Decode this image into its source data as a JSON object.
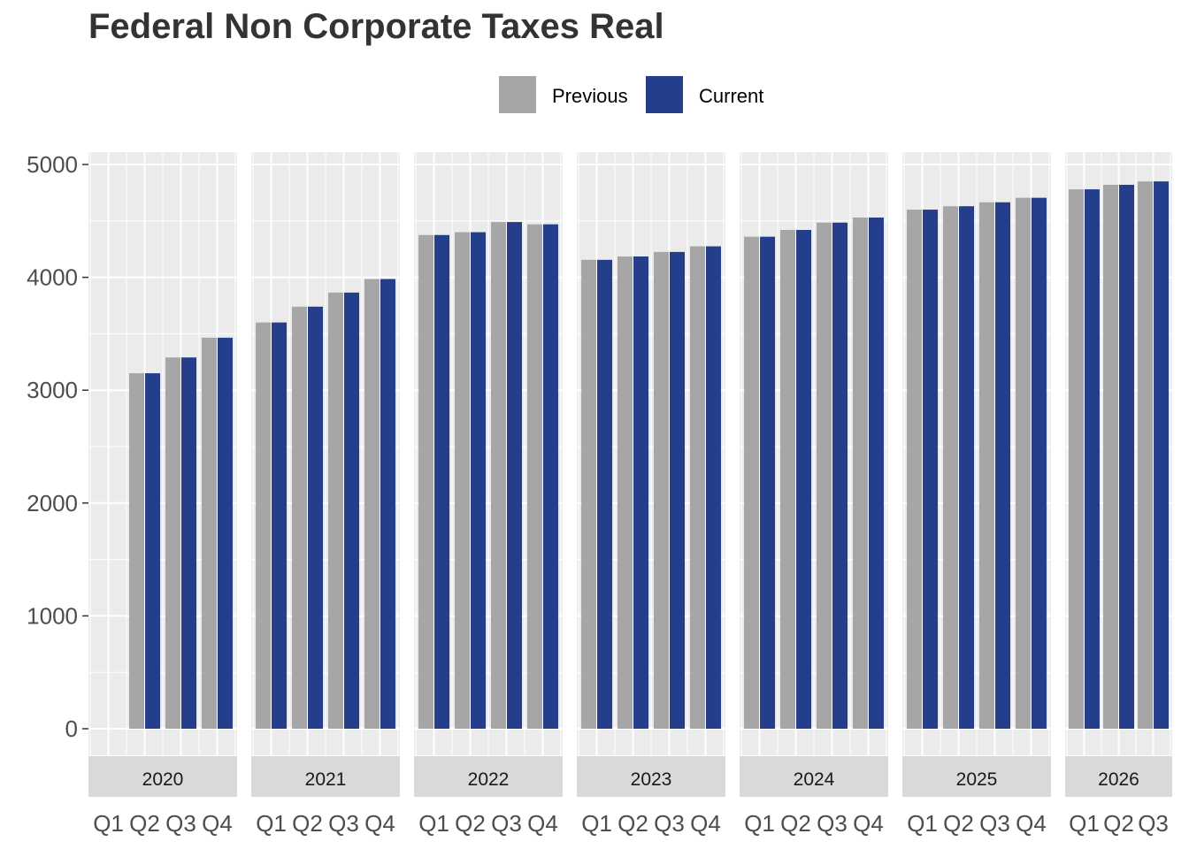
{
  "chart_data": {
    "type": "bar",
    "title": "Federal Non Corporate Taxes Real",
    "xlabel": "",
    "ylabel": "",
    "ylim": [
      -230,
      5100
    ],
    "yticks": [
      0,
      1000,
      2000,
      3000,
      4000,
      5000
    ],
    "grid": true,
    "legend_position": "top",
    "colors": {
      "Previous": "#a6a6a6",
      "Current": "#253e8c",
      "panel_bg": "#ebebeb",
      "strip_bg": "#d9d9d9"
    },
    "quarter_slots": [
      "Q1",
      "Q2",
      "Q3",
      "Q4"
    ],
    "series": [
      {
        "name": "Previous",
        "color": "#a6a6a6"
      },
      {
        "name": "Current",
        "color": "#253e8c"
      }
    ],
    "panels": [
      {
        "year": "2020",
        "quarters": [
          "Q1",
          "Q2",
          "Q3",
          "Q4"
        ],
        "previous": [
          null,
          3150,
          3290,
          3465
        ],
        "current": [
          null,
          3150,
          3290,
          3465
        ]
      },
      {
        "year": "2021",
        "quarters": [
          "Q1",
          "Q2",
          "Q3",
          "Q4"
        ],
        "previous": [
          3600,
          3740,
          3865,
          3985
        ],
        "current": [
          3600,
          3740,
          3865,
          3985
        ]
      },
      {
        "year": "2022",
        "quarters": [
          "Q1",
          "Q2",
          "Q3",
          "Q4"
        ],
        "previous": [
          4375,
          4400,
          4490,
          4470
        ],
        "current": [
          4375,
          4400,
          4490,
          4470
        ]
      },
      {
        "year": "2023",
        "quarters": [
          "Q1",
          "Q2",
          "Q3",
          "Q4"
        ],
        "previous": [
          4155,
          4185,
          4225,
          4275
        ],
        "current": [
          4155,
          4185,
          4225,
          4275
        ]
      },
      {
        "year": "2024",
        "quarters": [
          "Q1",
          "Q2",
          "Q3",
          "Q4"
        ],
        "previous": [
          4360,
          4420,
          4485,
          4530
        ],
        "current": [
          4360,
          4420,
          4485,
          4530
        ]
      },
      {
        "year": "2025",
        "quarters": [
          "Q1",
          "Q2",
          "Q3",
          "Q4"
        ],
        "previous": [
          4600,
          4630,
          4665,
          4705
        ],
        "current": [
          4600,
          4630,
          4665,
          4705
        ]
      },
      {
        "year": "2026",
        "quarters": [
          "Q1",
          "Q2",
          "Q3"
        ],
        "previous": [
          4780,
          4820,
          4850
        ],
        "current": [
          4780,
          4820,
          4850
        ]
      }
    ]
  }
}
